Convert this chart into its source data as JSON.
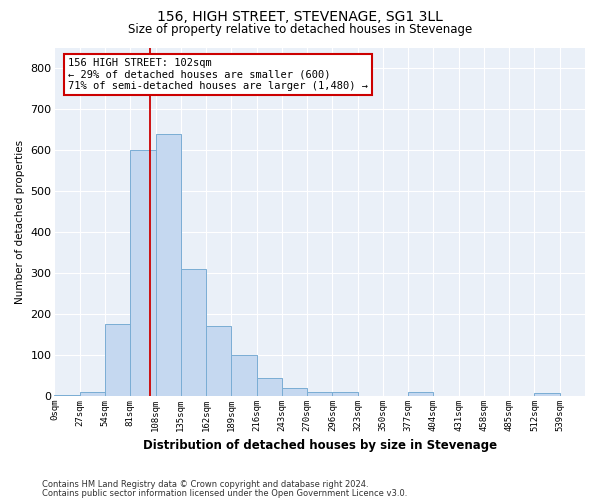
{
  "title": "156, HIGH STREET, STEVENAGE, SG1 3LL",
  "subtitle": "Size of property relative to detached houses in Stevenage",
  "xlabel": "Distribution of detached houses by size in Stevenage",
  "ylabel": "Number of detached properties",
  "bin_labels": [
    "0sqm",
    "27sqm",
    "54sqm",
    "81sqm",
    "108sqm",
    "135sqm",
    "162sqm",
    "189sqm",
    "216sqm",
    "243sqm",
    "270sqm",
    "296sqm",
    "323sqm",
    "350sqm",
    "377sqm",
    "404sqm",
    "431sqm",
    "458sqm",
    "485sqm",
    "512sqm",
    "539sqm"
  ],
  "bar_values": [
    3,
    10,
    175,
    600,
    640,
    310,
    170,
    100,
    45,
    20,
    10,
    10,
    0,
    0,
    10,
    0,
    0,
    0,
    0,
    8,
    0
  ],
  "bar_color": "#c5d8f0",
  "bar_edge_color": "#7aadd4",
  "vline_x": 102,
  "ylim": [
    0,
    850
  ],
  "yticks": [
    0,
    100,
    200,
    300,
    400,
    500,
    600,
    700,
    800
  ],
  "annotation_text": "156 HIGH STREET: 102sqm\n← 29% of detached houses are smaller (600)\n71% of semi-detached houses are larger (1,480) →",
  "annotation_box_color": "#ffffff",
  "annotation_box_edge_color": "#cc0000",
  "bg_color": "#eaf0f8",
  "grid_color": "#ffffff",
  "footer_line1": "Contains HM Land Registry data © Crown copyright and database right 2024.",
  "footer_line2": "Contains public sector information licensed under the Open Government Licence v3.0.",
  "bin_width": 27
}
